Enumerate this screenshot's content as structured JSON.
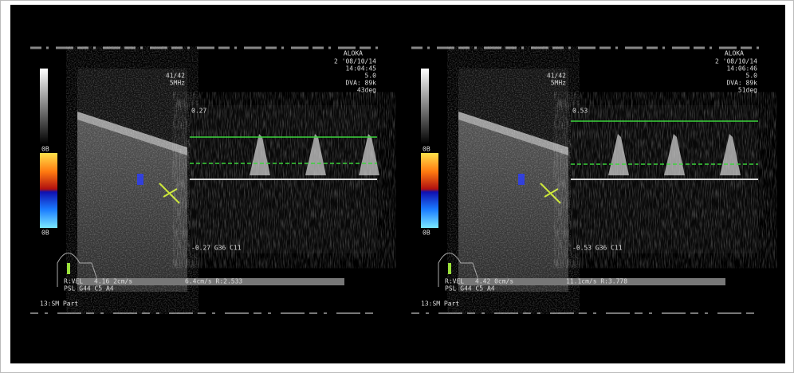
{
  "panels": [
    {
      "header": {
        "brand": "ALOKA",
        "date": "2 '08/10/14",
        "time": "14:04:45",
        "depth": "5.0",
        "dva": "DVA: 89k",
        "angle": "43deg",
        "frame": "41/42",
        "freq": "5MHz"
      },
      "scale": {
        "top": "0.27",
        "bottom": "-0.27 G36 C11",
        "color_top": "0B",
        "color_bottom": "0B"
      },
      "status": {
        "mode": "R:VEL",
        "vel": "4.16 2cm/s",
        "ratio": "6.4cm/s R:2.533",
        "gain": "PSL G44 C5 A4"
      },
      "footer": "13:SM Part"
    },
    {
      "header": {
        "brand": "ALOKA",
        "date": "2 '08/10/14",
        "time": "14:06:46",
        "depth": "5.0",
        "dva": "DVA: 89k",
        "angle": "51deg",
        "frame": "41/42",
        "freq": "5MHz"
      },
      "scale": {
        "top": "0.53",
        "bottom": "-0.53 G36 C11",
        "color_top": "0B",
        "color_bottom": "0B"
      },
      "status": {
        "mode": "R:VEL",
        "vel": "4.42 0cm/s",
        "ratio": "11.1cm/s R:3.778",
        "gain": "PSL G44 C5 A4"
      },
      "footer": "13:SM Part"
    }
  ]
}
